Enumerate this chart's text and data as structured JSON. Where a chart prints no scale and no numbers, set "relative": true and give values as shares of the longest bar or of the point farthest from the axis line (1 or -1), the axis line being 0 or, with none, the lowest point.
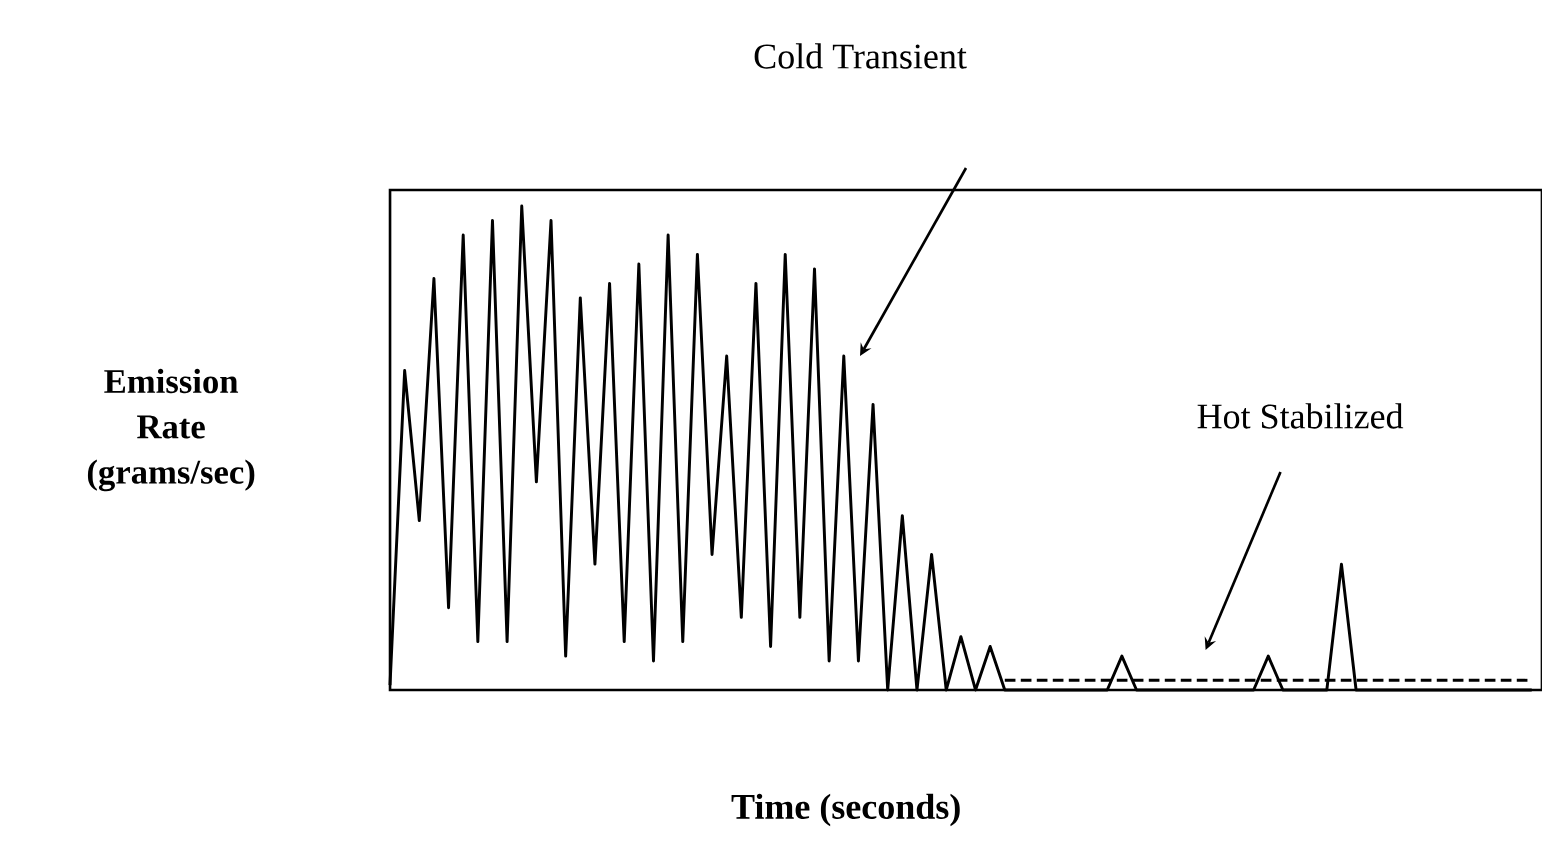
{
  "chart_data": {
    "type": "line",
    "relative": true,
    "xlabel": "Time (seconds)",
    "ylabel": "Emission Rate (grams/sec)",
    "marker": "none",
    "annotations": [
      "Cold Transient",
      "Hot Stabilized"
    ],
    "categories": [
      null,
      null,
      null,
      null,
      null,
      null,
      null,
      null,
      null,
      null,
      null,
      null,
      null,
      null,
      null,
      null,
      null,
      null,
      null,
      null,
      null,
      null,
      null,
      null,
      null,
      null,
      null,
      null,
      null,
      null,
      null,
      null,
      null,
      null,
      null,
      null,
      null,
      null,
      null,
      null,
      null,
      null,
      null,
      null,
      null,
      null,
      null,
      null,
      null,
      null,
      null,
      null,
      null,
      null,
      null,
      null,
      null,
      null,
      null,
      null,
      null,
      null,
      null,
      null,
      null,
      null,
      null,
      null,
      null,
      null,
      null,
      null,
      null,
      null,
      null,
      null,
      null,
      null,
      null
    ],
    "series": [
      {
        "color": "#000000",
        "line_style": "solid",
        "values": [
          0.01,
          0.66,
          0.35,
          0.85,
          0.17,
          0.94,
          0.1,
          0.97,
          0.1,
          1.0,
          0.43,
          0.97,
          0.07,
          0.81,
          0.26,
          0.84,
          0.1,
          0.88,
          0.06,
          0.94,
          0.1,
          0.9,
          0.28,
          0.69,
          0.15,
          0.84,
          0.09,
          0.9,
          0.15,
          0.87,
          0.06,
          0.69,
          0.06,
          0.59,
          0,
          0.36,
          0,
          0.28,
          0,
          0.11,
          0,
          0.09,
          0,
          0,
          0,
          0,
          0,
          0,
          0,
          0,
          0.07,
          0,
          0,
          0,
          0,
          0,
          0,
          0,
          0,
          0,
          0.07,
          0,
          0,
          0,
          0,
          0.26,
          0,
          0,
          0,
          0,
          0,
          0,
          0,
          0,
          0,
          0,
          0,
          0,
          0
        ]
      },
      {
        "color": "#000000",
        "line_style": "dashed",
        "values": [
          null,
          null,
          null,
          null,
          null,
          null,
          null,
          null,
          null,
          null,
          null,
          null,
          null,
          null,
          null,
          null,
          null,
          null,
          null,
          null,
          null,
          null,
          null,
          null,
          null,
          null,
          null,
          null,
          null,
          null,
          null,
          null,
          null,
          null,
          null,
          null,
          null,
          null,
          null,
          null,
          null,
          null,
          0.02,
          0.02,
          0.02,
          0.02,
          0.02,
          0.02,
          0.02,
          0.02,
          0.02,
          0.02,
          0.02,
          0.02,
          0.02,
          0.02,
          0.02,
          0.02,
          0.02,
          0.02,
          0.02,
          0.02,
          0.02,
          0.02,
          0.02,
          0.02,
          0.02,
          0.02,
          0.02,
          0.02,
          0.02,
          0.02,
          0.02,
          0.02,
          0.02,
          0.02,
          0.02,
          0.02,
          0.02
        ]
      }
    ]
  }
}
